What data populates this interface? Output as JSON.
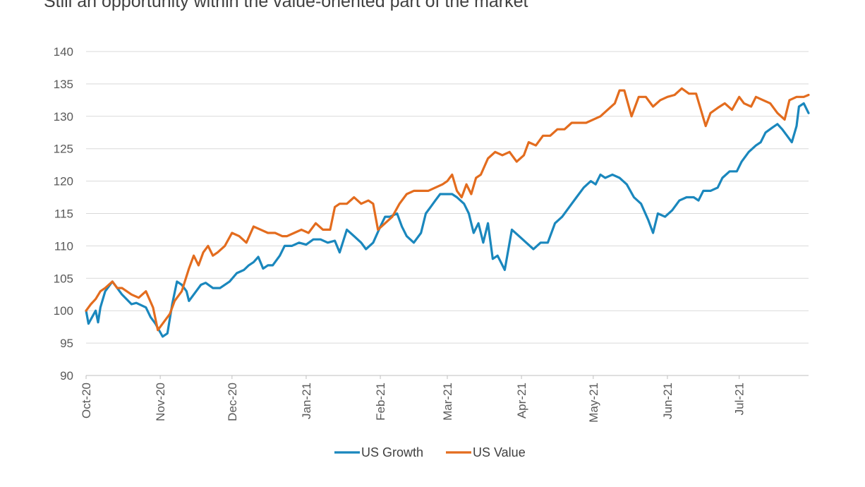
{
  "title": "Still an opportunity within the value-oriented part of the market",
  "colors": {
    "growth": "#1a87bd",
    "value": "#e36c1e",
    "grid": "#d9d9d9",
    "axis": "#bfbfbf"
  },
  "chart_data": {
    "type": "line",
    "title": "Still an opportunity within the value-oriented part of the market",
    "xlabel": "",
    "ylabel": "",
    "ylim": [
      90,
      140
    ],
    "yticks": [
      "140",
      "135",
      "130",
      "125",
      "120",
      "115",
      "110",
      "105",
      "100",
      "95",
      "90"
    ],
    "xlim": [
      "2020-10-01",
      "2021-07-30"
    ],
    "xtick_labels": [
      "Oct-20",
      "Nov-20",
      "Dec-20",
      "Jan-21",
      "Feb-21",
      "Mar-21",
      "Apr-21",
      "May-21",
      "Jun-21",
      "Jul-21"
    ],
    "xtick_dates": [
      "2020-10-01",
      "2020-11-01",
      "2020-12-01",
      "2021-01-01",
      "2021-02-01",
      "2021-03-01",
      "2021-04-01",
      "2021-05-01",
      "2021-06-01",
      "2021-07-01"
    ],
    "grid": true,
    "legend": "bottom-center",
    "series": [
      {
        "name": "US Growth",
        "color": "#1a87bd",
        "points": [
          [
            "2020-10-01",
            100
          ],
          [
            "2020-10-02",
            98
          ],
          [
            "2020-10-05",
            100
          ],
          [
            "2020-10-06",
            98.2
          ],
          [
            "2020-10-07",
            100.5
          ],
          [
            "2020-10-09",
            103
          ],
          [
            "2020-10-12",
            104.5
          ],
          [
            "2020-10-14",
            103.5
          ],
          [
            "2020-10-16",
            102.5
          ],
          [
            "2020-10-20",
            101
          ],
          [
            "2020-10-22",
            101.2
          ],
          [
            "2020-10-26",
            100.5
          ],
          [
            "2020-10-28",
            99
          ],
          [
            "2020-10-30",
            98
          ],
          [
            "2020-11-02",
            96
          ],
          [
            "2020-11-04",
            96.5
          ],
          [
            "2020-11-06",
            101
          ],
          [
            "2020-11-08",
            104.5
          ],
          [
            "2020-11-10",
            104
          ],
          [
            "2020-11-12",
            103
          ],
          [
            "2020-11-13",
            101.5
          ],
          [
            "2020-11-16",
            103
          ],
          [
            "2020-11-18",
            104
          ],
          [
            "2020-11-20",
            104.3
          ],
          [
            "2020-11-23",
            103.5
          ],
          [
            "2020-11-26",
            103.5
          ],
          [
            "2020-11-30",
            104.5
          ],
          [
            "2020-12-03",
            105.8
          ],
          [
            "2020-12-06",
            106.3
          ],
          [
            "2020-12-08",
            107
          ],
          [
            "2020-12-10",
            107.5
          ],
          [
            "2020-12-12",
            108.3
          ],
          [
            "2020-12-14",
            106.5
          ],
          [
            "2020-12-16",
            107
          ],
          [
            "2020-12-18",
            107
          ],
          [
            "2020-12-21",
            108.5
          ],
          [
            "2020-12-23",
            110
          ],
          [
            "2020-12-26",
            110
          ],
          [
            "2020-12-29",
            110.5
          ],
          [
            "2021-01-01",
            110.2
          ],
          [
            "2021-01-04",
            111
          ],
          [
            "2021-01-07",
            111
          ],
          [
            "2021-01-10",
            110.5
          ],
          [
            "2021-01-13",
            110.8
          ],
          [
            "2021-01-15",
            109
          ],
          [
            "2021-01-18",
            112.5
          ],
          [
            "2021-01-21",
            111.5
          ],
          [
            "2021-01-24",
            110.5
          ],
          [
            "2021-01-26",
            109.5
          ],
          [
            "2021-01-29",
            110.5
          ],
          [
            "2021-02-01",
            113
          ],
          [
            "2021-02-03",
            114.5
          ],
          [
            "2021-02-05",
            114.5
          ],
          [
            "2021-02-08",
            115
          ],
          [
            "2021-02-10",
            113
          ],
          [
            "2021-02-12",
            111.5
          ],
          [
            "2021-02-15",
            110.5
          ],
          [
            "2021-02-18",
            112
          ],
          [
            "2021-02-20",
            115
          ],
          [
            "2021-02-22",
            116
          ],
          [
            "2021-02-24",
            117
          ],
          [
            "2021-02-26",
            118
          ],
          [
            "2021-03-01",
            118
          ],
          [
            "2021-03-03",
            118
          ],
          [
            "2021-03-05",
            117.5
          ],
          [
            "2021-03-08",
            116.5
          ],
          [
            "2021-03-10",
            115
          ],
          [
            "2021-03-12",
            112
          ],
          [
            "2021-03-14",
            113.5
          ],
          [
            "2021-03-16",
            110.5
          ],
          [
            "2021-03-18",
            113.5
          ],
          [
            "2021-03-20",
            108
          ],
          [
            "2021-03-22",
            108.5
          ],
          [
            "2021-03-25",
            106.3
          ],
          [
            "2021-03-28",
            112.5
          ],
          [
            "2021-03-31",
            111.5
          ],
          [
            "2021-04-03",
            110.5
          ],
          [
            "2021-04-06",
            109.5
          ],
          [
            "2021-04-09",
            110.5
          ],
          [
            "2021-04-12",
            110.5
          ],
          [
            "2021-04-15",
            113.5
          ],
          [
            "2021-04-18",
            114.5
          ],
          [
            "2021-04-21",
            116
          ],
          [
            "2021-04-24",
            117.5
          ],
          [
            "2021-04-27",
            119
          ],
          [
            "2021-04-30",
            120
          ],
          [
            "2021-05-02",
            119.5
          ],
          [
            "2021-05-04",
            121
          ],
          [
            "2021-05-06",
            120.5
          ],
          [
            "2021-05-09",
            121
          ],
          [
            "2021-05-12",
            120.5
          ],
          [
            "2021-05-15",
            119.5
          ],
          [
            "2021-05-18",
            117.5
          ],
          [
            "2021-05-21",
            116.5
          ],
          [
            "2021-05-24",
            114
          ],
          [
            "2021-05-26",
            112
          ],
          [
            "2021-05-28",
            115
          ],
          [
            "2021-05-31",
            114.5
          ],
          [
            "2021-06-03",
            115.5
          ],
          [
            "2021-06-06",
            117
          ],
          [
            "2021-06-09",
            117.5
          ],
          [
            "2021-06-12",
            117.5
          ],
          [
            "2021-06-14",
            117
          ],
          [
            "2021-06-16",
            118.5
          ],
          [
            "2021-06-19",
            118.5
          ],
          [
            "2021-06-22",
            119
          ],
          [
            "2021-06-24",
            120.5
          ],
          [
            "2021-06-27",
            121.5
          ],
          [
            "2021-06-30",
            121.5
          ],
          [
            "2021-07-02",
            123
          ],
          [
            "2021-07-05",
            124.5
          ],
          [
            "2021-07-08",
            125.5
          ],
          [
            "2021-07-10",
            126
          ],
          [
            "2021-07-12",
            127.5
          ],
          [
            "2021-07-15",
            128.3
          ],
          [
            "2021-07-17",
            128.8
          ],
          [
            "2021-07-19",
            128
          ],
          [
            "2021-07-21",
            127
          ],
          [
            "2021-07-23",
            126
          ],
          [
            "2021-07-25",
            128.5
          ],
          [
            "2021-07-26",
            131.5
          ],
          [
            "2021-07-28",
            132
          ],
          [
            "2021-07-30",
            130.5
          ]
        ]
      },
      {
        "name": "US Value",
        "color": "#e36c1e",
        "points": [
          [
            "2020-10-01",
            100
          ],
          [
            "2020-10-03",
            101
          ],
          [
            "2020-10-05",
            101.8
          ],
          [
            "2020-10-07",
            103
          ],
          [
            "2020-10-09",
            103.5
          ],
          [
            "2020-10-12",
            104.5
          ],
          [
            "2020-10-14",
            103.5
          ],
          [
            "2020-10-16",
            103.5
          ],
          [
            "2020-10-20",
            102.5
          ],
          [
            "2020-10-23",
            102
          ],
          [
            "2020-10-26",
            103
          ],
          [
            "2020-10-29",
            100.5
          ],
          [
            "2020-10-31",
            97
          ],
          [
            "2020-11-02",
            98
          ],
          [
            "2020-11-05",
            99.5
          ],
          [
            "2020-11-07",
            101.5
          ],
          [
            "2020-11-10",
            103
          ],
          [
            "2020-11-13",
            106.5
          ],
          [
            "2020-11-15",
            108.5
          ],
          [
            "2020-11-17",
            107
          ],
          [
            "2020-11-19",
            109
          ],
          [
            "2020-11-21",
            110
          ],
          [
            "2020-11-23",
            108.5
          ],
          [
            "2020-11-25",
            109
          ],
          [
            "2020-11-28",
            110
          ],
          [
            "2020-12-01",
            112
          ],
          [
            "2020-12-04",
            111.5
          ],
          [
            "2020-12-07",
            110.5
          ],
          [
            "2020-12-10",
            113
          ],
          [
            "2020-12-13",
            112.5
          ],
          [
            "2020-12-16",
            112
          ],
          [
            "2020-12-19",
            112
          ],
          [
            "2020-12-22",
            111.5
          ],
          [
            "2020-12-24",
            111.5
          ],
          [
            "2020-12-27",
            112
          ],
          [
            "2020-12-30",
            112.5
          ],
          [
            "2021-01-02",
            112
          ],
          [
            "2021-01-05",
            113.5
          ],
          [
            "2021-01-08",
            112.5
          ],
          [
            "2021-01-11",
            112.5
          ],
          [
            "2021-01-13",
            116
          ],
          [
            "2021-01-15",
            116.5
          ],
          [
            "2021-01-18",
            116.5
          ],
          [
            "2021-01-21",
            117.5
          ],
          [
            "2021-01-24",
            116.5
          ],
          [
            "2021-01-27",
            117
          ],
          [
            "2021-01-29",
            116.5
          ],
          [
            "2021-01-31",
            112.5
          ],
          [
            "2021-02-03",
            113.5
          ],
          [
            "2021-02-06",
            114.5
          ],
          [
            "2021-02-09",
            116.5
          ],
          [
            "2021-02-12",
            118
          ],
          [
            "2021-02-15",
            118.5
          ],
          [
            "2021-02-18",
            118.5
          ],
          [
            "2021-02-21",
            118.5
          ],
          [
            "2021-02-24",
            119
          ],
          [
            "2021-02-27",
            119.5
          ],
          [
            "2021-03-01",
            120
          ],
          [
            "2021-03-03",
            121
          ],
          [
            "2021-03-05",
            118.5
          ],
          [
            "2021-03-07",
            117.5
          ],
          [
            "2021-03-09",
            119.5
          ],
          [
            "2021-03-11",
            118
          ],
          [
            "2021-03-13",
            120.5
          ],
          [
            "2021-03-15",
            121
          ],
          [
            "2021-03-18",
            123.5
          ],
          [
            "2021-03-21",
            124.5
          ],
          [
            "2021-03-24",
            124
          ],
          [
            "2021-03-27",
            124.5
          ],
          [
            "2021-03-30",
            123
          ],
          [
            "2021-04-02",
            124
          ],
          [
            "2021-04-04",
            126
          ],
          [
            "2021-04-07",
            125.5
          ],
          [
            "2021-04-10",
            127
          ],
          [
            "2021-04-13",
            127
          ],
          [
            "2021-04-16",
            128
          ],
          [
            "2021-04-19",
            128
          ],
          [
            "2021-04-22",
            129
          ],
          [
            "2021-04-25",
            129
          ],
          [
            "2021-04-28",
            129
          ],
          [
            "2021-05-01",
            129.5
          ],
          [
            "2021-05-04",
            130
          ],
          [
            "2021-05-07",
            131
          ],
          [
            "2021-05-10",
            132
          ],
          [
            "2021-05-12",
            134
          ],
          [
            "2021-05-14",
            134
          ],
          [
            "2021-05-17",
            130
          ],
          [
            "2021-05-20",
            133
          ],
          [
            "2021-05-23",
            133
          ],
          [
            "2021-05-26",
            131.5
          ],
          [
            "2021-05-29",
            132.5
          ],
          [
            "2021-06-01",
            133
          ],
          [
            "2021-06-04",
            133.3
          ],
          [
            "2021-06-07",
            134.3
          ],
          [
            "2021-06-10",
            133.5
          ],
          [
            "2021-06-13",
            133.5
          ],
          [
            "2021-06-15",
            131
          ],
          [
            "2021-06-17",
            128.5
          ],
          [
            "2021-06-19",
            130.5
          ],
          [
            "2021-06-22",
            131.3
          ],
          [
            "2021-06-25",
            132
          ],
          [
            "2021-06-28",
            131
          ],
          [
            "2021-07-01",
            133
          ],
          [
            "2021-07-03",
            132
          ],
          [
            "2021-07-06",
            131.5
          ],
          [
            "2021-07-08",
            133
          ],
          [
            "2021-07-11",
            132.5
          ],
          [
            "2021-07-14",
            132
          ],
          [
            "2021-07-17",
            130.5
          ],
          [
            "2021-07-20",
            129.5
          ],
          [
            "2021-07-22",
            132.5
          ],
          [
            "2021-07-25",
            133
          ],
          [
            "2021-07-28",
            133
          ],
          [
            "2021-07-30",
            133.3
          ]
        ]
      }
    ]
  }
}
